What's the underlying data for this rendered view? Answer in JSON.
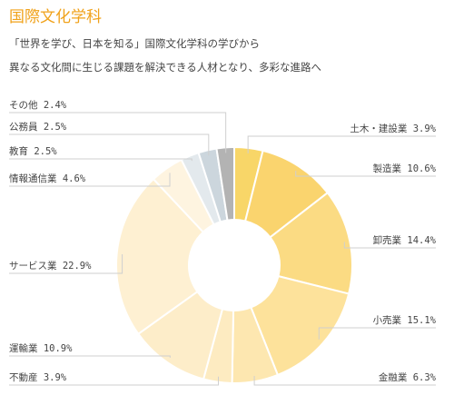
{
  "title": "国際文化学科",
  "description": [
    "「世界を学び、日本を知る」国際文化学科の学びから",
    "異なる文化間に生じる課題を解決できる人材となり、多彩な進路へ"
  ],
  "chart_data": {
    "type": "pie",
    "donut": true,
    "unit": "%",
    "slices": [
      {
        "label": "土木・建設業",
        "value": 3.9,
        "color": "#f8d668"
      },
      {
        "label": "製造業",
        "value": 10.6,
        "color": "#fad46e"
      },
      {
        "label": "卸売業",
        "value": 14.4,
        "color": "#fbdb83"
      },
      {
        "label": "小売業",
        "value": 15.1,
        "color": "#fde29b"
      },
      {
        "label": "金融業",
        "value": 6.3,
        "color": "#fde7b0"
      },
      {
        "label": "不動産",
        "value": 3.9,
        "color": "#fdebc1"
      },
      {
        "label": "運輸業",
        "value": 10.9,
        "color": "#fdedc9"
      },
      {
        "label": "サービス業",
        "value": 22.9,
        "color": "#fef0d2"
      },
      {
        "label": "情報通信業",
        "value": 4.6,
        "color": "#fef4e0"
      },
      {
        "label": "教育",
        "value": 2.5,
        "color": "#e3e9ed"
      },
      {
        "label": "公務員",
        "value": 2.5,
        "color": "#ccd6dd"
      },
      {
        "label": "その他",
        "value": 2.4,
        "color": "#b3b3b3"
      }
    ]
  }
}
